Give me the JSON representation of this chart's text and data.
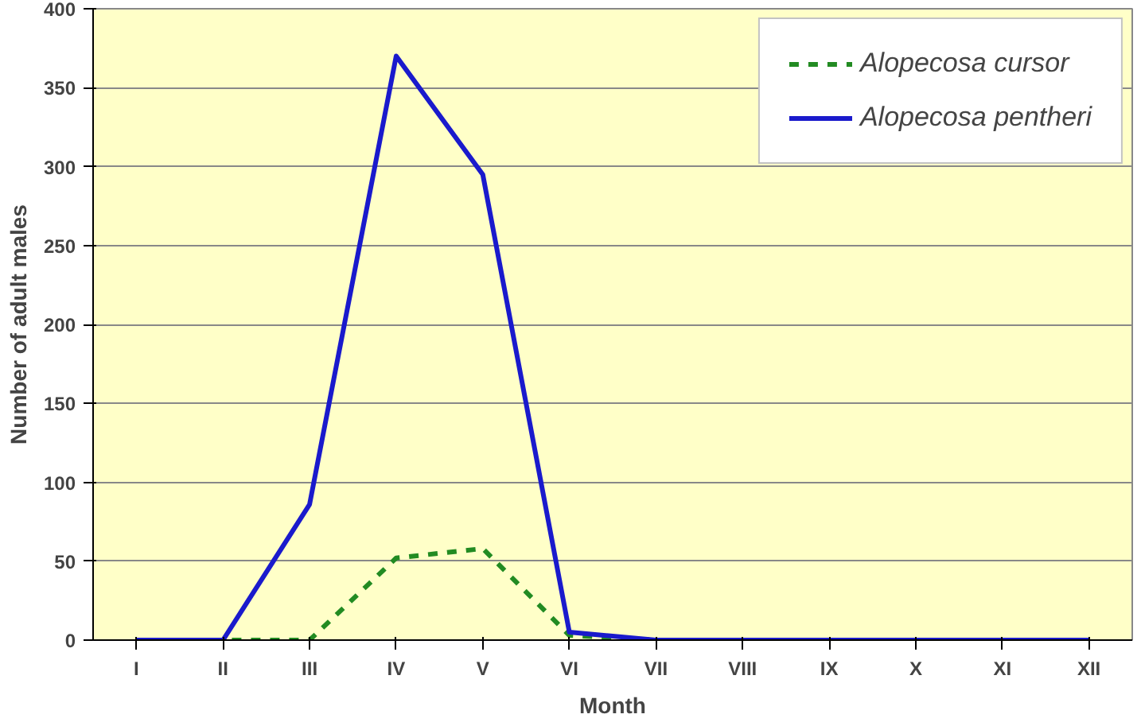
{
  "chart_data": {
    "type": "line",
    "xlabel": "Month",
    "ylabel": "Number of adult males",
    "categories": [
      "I",
      "II",
      "III",
      "IV",
      "V",
      "VI",
      "VII",
      "VIII",
      "IX",
      "X",
      "XI",
      "XII"
    ],
    "series": [
      {
        "name": "Alopecosa cursor",
        "color": "#228b22",
        "line_style": "dashed",
        "values": [
          0,
          0,
          0,
          52,
          58,
          3,
          0,
          0,
          null,
          null,
          null,
          null
        ]
      },
      {
        "name": "Alopecosa pentheri",
        "color": "#1a1acc",
        "line_style": "solid",
        "values": [
          0,
          0,
          86,
          370,
          295,
          5,
          0,
          0,
          0,
          0,
          0,
          0
        ]
      }
    ],
    "ylim": [
      0,
      400
    ],
    "yticks": [
      0,
      50,
      100,
      150,
      200,
      250,
      300,
      350,
      400
    ],
    "grid": "y",
    "legend": "top right",
    "marker": "none"
  }
}
